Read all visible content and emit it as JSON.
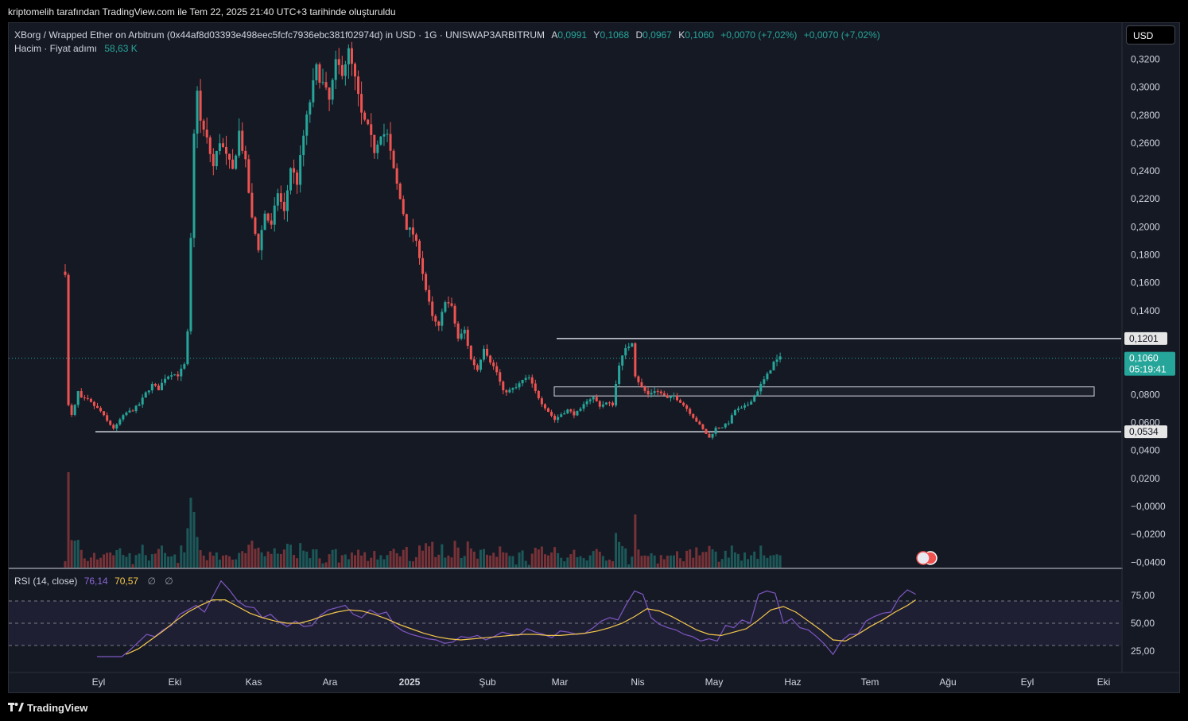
{
  "caption": "kriptomelih tarafından TradingView.com ile Tem 22, 2025 21:40 UTC+3 tarihinde oluşturuldu",
  "legend": {
    "symbol": "XBorg / Wrapped Ether on Arbitrum (0x44af8d03393e498eec5fcfc7936ebc381f02974d) in USD · 1G · UNISWAP3ARBITRUM",
    "open_label": "A",
    "open": "0,0991",
    "high_label": "Y",
    "high": "0,1068",
    "low_label": "D",
    "low": "0,0967",
    "close_label": "K",
    "close": "0,1060",
    "change": "+0,0070 (+7,02%)",
    "change2": "+0,0070 (+7,02%)",
    "volume_label": "Hacim · Fiyat adımı",
    "volume_value": "58,63 K"
  },
  "currency_button": "USD",
  "rsi": {
    "label": "RSI (14, close)",
    "value": "76,14",
    "ma_value": "70,57",
    "flag1": "∅",
    "flag2": "∅",
    "ticks": [
      "75,00",
      "50,00",
      "25,00"
    ]
  },
  "footer": {
    "brand": "TradingView"
  },
  "colors": {
    "up": "#26a69a",
    "down": "#ef5350",
    "rsi": "#7e57c2",
    "rsi_ma": "#f5c84b",
    "background": "#151924"
  },
  "chart_data": {
    "type": "candlestick",
    "y_ticks": [
      "0,3200",
      "0,3000",
      "0,2800",
      "0,2600",
      "0,2400",
      "0,2200",
      "0,2000",
      "0,1800",
      "0,1600",
      "0,1400",
      "0,0800",
      "0,0600",
      "0,0400",
      "0,0200",
      "−0,0000",
      "−0,0200",
      "−0,0400"
    ],
    "price_labels": {
      "resistance": "0,1201",
      "current": "0,1060",
      "countdown": "05:19:41",
      "support": "0,0534"
    },
    "x_labels": [
      "Eyl",
      "Eki",
      "Kas",
      "Ara",
      "2025",
      "Şub",
      "Mar",
      "Nis",
      "May",
      "Haz",
      "Tem",
      "Ağu",
      "Eyl",
      "Eki"
    ],
    "ylim": [
      -0.04,
      0.33
    ],
    "horizontal_lines": [
      0.1201,
      0.0534
    ],
    "zone": [
      0.079,
      0.0855
    ],
    "price_path": [
      [
        0,
        0.168
      ],
      [
        0.5,
        0.13
      ],
      [
        1,
        0.072
      ],
      [
        2,
        0.065
      ],
      [
        3,
        0.072
      ],
      [
        4,
        0.082
      ],
      [
        5,
        0.077
      ],
      [
        7,
        0.076
      ],
      [
        9,
        0.072
      ],
      [
        11,
        0.068
      ],
      [
        13,
        0.061
      ],
      [
        15,
        0.056
      ],
      [
        16,
        0.058
      ],
      [
        17,
        0.062
      ],
      [
        19,
        0.067
      ],
      [
        21,
        0.069
      ],
      [
        23,
        0.073
      ],
      [
        25,
        0.081
      ],
      [
        27,
        0.087
      ],
      [
        29,
        0.084
      ],
      [
        31,
        0.092
      ],
      [
        33,
        0.095
      ],
      [
        35,
        0.094
      ],
      [
        37,
        0.101
      ],
      [
        38,
        0.124
      ],
      [
        39,
        0.19
      ],
      [
        40,
        0.265
      ],
      [
        41,
        0.3
      ],
      [
        42,
        0.275
      ],
      [
        44,
        0.262
      ],
      [
        46,
        0.243
      ],
      [
        48,
        0.262
      ],
      [
        50,
        0.25
      ],
      [
        52,
        0.24
      ],
      [
        54,
        0.268
      ],
      [
        56,
        0.245
      ],
      [
        58,
        0.205
      ],
      [
        60,
        0.185
      ],
      [
        62,
        0.21
      ],
      [
        64,
        0.2
      ],
      [
        66,
        0.225
      ],
      [
        68,
        0.21
      ],
      [
        70,
        0.243
      ],
      [
        72,
        0.232
      ],
      [
        74,
        0.265
      ],
      [
        76,
        0.29
      ],
      [
        78,
        0.313
      ],
      [
        80,
        0.302
      ],
      [
        82,
        0.29
      ],
      [
        84,
        0.316
      ],
      [
        86,
        0.312
      ],
      [
        88,
        0.325
      ],
      [
        90,
        0.305
      ],
      [
        92,
        0.28
      ],
      [
        94,
        0.27
      ],
      [
        96,
        0.255
      ],
      [
        98,
        0.268
      ],
      [
        100,
        0.265
      ],
      [
        102,
        0.24
      ],
      [
        104,
        0.22
      ],
      [
        106,
        0.2
      ],
      [
        108,
        0.195
      ],
      [
        110,
        0.18
      ],
      [
        112,
        0.155
      ],
      [
        114,
        0.135
      ],
      [
        116,
        0.128
      ],
      [
        118,
        0.148
      ],
      [
        120,
        0.142
      ],
      [
        122,
        0.12
      ],
      [
        124,
        0.126
      ],
      [
        126,
        0.105
      ],
      [
        128,
        0.098
      ],
      [
        130,
        0.114
      ],
      [
        132,
        0.104
      ],
      [
        134,
        0.096
      ],
      [
        136,
        0.082
      ],
      [
        138,
        0.083
      ],
      [
        140,
        0.085
      ],
      [
        142,
        0.09
      ],
      [
        144,
        0.092
      ],
      [
        146,
        0.082
      ],
      [
        148,
        0.074
      ],
      [
        150,
        0.068
      ],
      [
        152,
        0.062
      ],
      [
        154,
        0.066
      ],
      [
        156,
        0.069
      ],
      [
        158,
        0.066
      ],
      [
        160,
        0.069
      ],
      [
        162,
        0.076
      ],
      [
        164,
        0.078
      ],
      [
        166,
        0.072
      ],
      [
        168,
        0.074
      ],
      [
        170,
        0.073
      ],
      [
        172,
        0.102
      ],
      [
        174,
        0.112
      ],
      [
        176,
        0.118
      ],
      [
        177,
        0.094
      ],
      [
        179,
        0.085
      ],
      [
        181,
        0.08
      ],
      [
        183,
        0.083
      ],
      [
        185,
        0.081
      ],
      [
        187,
        0.077
      ],
      [
        189,
        0.079
      ],
      [
        191,
        0.075
      ],
      [
        193,
        0.07
      ],
      [
        195,
        0.064
      ],
      [
        197,
        0.058
      ],
      [
        199,
        0.052
      ],
      [
        200,
        0.049
      ],
      [
        202,
        0.056
      ],
      [
        204,
        0.057
      ],
      [
        206,
        0.06
      ],
      [
        208,
        0.069
      ],
      [
        210,
        0.07
      ],
      [
        212,
        0.073
      ],
      [
        214,
        0.079
      ],
      [
        216,
        0.087
      ],
      [
        218,
        0.094
      ],
      [
        220,
        0.103
      ],
      [
        222,
        0.106
      ]
    ],
    "rsi_path": [
      [
        0,
        20
      ],
      [
        6,
        20
      ],
      [
        8,
        26
      ],
      [
        10,
        33
      ],
      [
        12,
        40
      ],
      [
        14,
        38
      ],
      [
        16,
        44
      ],
      [
        18,
        48
      ],
      [
        20,
        58
      ],
      [
        22,
        62
      ],
      [
        24,
        66
      ],
      [
        26,
        60
      ],
      [
        28,
        74
      ],
      [
        30,
        88
      ],
      [
        32,
        80
      ],
      [
        34,
        70
      ],
      [
        36,
        65
      ],
      [
        38,
        64
      ],
      [
        40,
        55
      ],
      [
        42,
        58
      ],
      [
        44,
        51
      ],
      [
        46,
        47
      ],
      [
        48,
        52
      ],
      [
        50,
        47
      ],
      [
        52,
        48
      ],
      [
        54,
        57
      ],
      [
        56,
        62
      ],
      [
        58,
        64
      ],
      [
        60,
        66
      ],
      [
        62,
        58
      ],
      [
        64,
        55
      ],
      [
        66,
        62
      ],
      [
        68,
        58
      ],
      [
        70,
        60
      ],
      [
        72,
        48
      ],
      [
        74,
        43
      ],
      [
        76,
        40
      ],
      [
        78,
        38
      ],
      [
        80,
        36
      ],
      [
        82,
        35
      ],
      [
        84,
        32
      ],
      [
        86,
        33
      ],
      [
        88,
        38
      ],
      [
        90,
        37
      ],
      [
        92,
        39
      ],
      [
        94,
        35
      ],
      [
        96,
        38
      ],
      [
        98,
        42
      ],
      [
        100,
        40
      ],
      [
        102,
        39
      ],
      [
        104,
        45
      ],
      [
        106,
        42
      ],
      [
        108,
        40
      ],
      [
        110,
        37
      ],
      [
        112,
        43
      ],
      [
        114,
        42
      ],
      [
        116,
        40
      ],
      [
        118,
        41
      ],
      [
        120,
        46
      ],
      [
        122,
        52
      ],
      [
        124,
        55
      ],
      [
        126,
        53
      ],
      [
        128,
        67
      ],
      [
        130,
        79
      ],
      [
        132,
        76
      ],
      [
        134,
        55
      ],
      [
        136,
        49
      ],
      [
        138,
        46
      ],
      [
        140,
        44
      ],
      [
        142,
        40
      ],
      [
        144,
        38
      ],
      [
        146,
        34
      ],
      [
        148,
        36
      ],
      [
        150,
        34
      ],
      [
        152,
        48
      ],
      [
        154,
        46
      ],
      [
        156,
        53
      ],
      [
        158,
        50
      ],
      [
        160,
        76
      ],
      [
        162,
        79
      ],
      [
        164,
        77
      ],
      [
        166,
        50
      ],
      [
        168,
        54
      ],
      [
        170,
        46
      ],
      [
        172,
        44
      ],
      [
        174,
        38
      ],
      [
        176,
        31
      ],
      [
        178,
        22
      ],
      [
        180,
        34
      ],
      [
        182,
        40
      ],
      [
        184,
        40
      ],
      [
        186,
        52
      ],
      [
        188,
        56
      ],
      [
        190,
        59
      ],
      [
        192,
        60
      ],
      [
        194,
        73
      ],
      [
        196,
        80
      ],
      [
        198,
        76
      ]
    ],
    "rsi_ma_path": [
      [
        7,
        22
      ],
      [
        10,
        27
      ],
      [
        13,
        35
      ],
      [
        16,
        43
      ],
      [
        19,
        52
      ],
      [
        22,
        60
      ],
      [
        25,
        66
      ],
      [
        28,
        71
      ],
      [
        31,
        71
      ],
      [
        34,
        65
      ],
      [
        37,
        59
      ],
      [
        40,
        55
      ],
      [
        43,
        52
      ],
      [
        46,
        50
      ],
      [
        49,
        50
      ],
      [
        52,
        53
      ],
      [
        55,
        57
      ],
      [
        58,
        60
      ],
      [
        61,
        62
      ],
      [
        64,
        61
      ],
      [
        67,
        58
      ],
      [
        70,
        54
      ],
      [
        73,
        49
      ],
      [
        76,
        45
      ],
      [
        79,
        41
      ],
      [
        82,
        38
      ],
      [
        85,
        36
      ],
      [
        88,
        35
      ],
      [
        91,
        36
      ],
      [
        94,
        37
      ],
      [
        97,
        38
      ],
      [
        100,
        39
      ],
      [
        103,
        40
      ],
      [
        106,
        40
      ],
      [
        109,
        39
      ],
      [
        112,
        39
      ],
      [
        115,
        40
      ],
      [
        118,
        41
      ],
      [
        121,
        43
      ],
      [
        124,
        46
      ],
      [
        127,
        50
      ],
      [
        130,
        56
      ],
      [
        133,
        63
      ],
      [
        136,
        61
      ],
      [
        139,
        56
      ],
      [
        142,
        50
      ],
      [
        145,
        44
      ],
      [
        148,
        40
      ],
      [
        151,
        39
      ],
      [
        154,
        42
      ],
      [
        157,
        45
      ],
      [
        160,
        53
      ],
      [
        163,
        62
      ],
      [
        166,
        65
      ],
      [
        169,
        60
      ],
      [
        172,
        52
      ],
      [
        175,
        44
      ],
      [
        178,
        35
      ],
      [
        181,
        34
      ],
      [
        184,
        40
      ],
      [
        187,
        47
      ],
      [
        190,
        53
      ],
      [
        193,
        60
      ],
      [
        196,
        66
      ],
      [
        198,
        71
      ]
    ],
    "rsi_levels": [
      70,
      50,
      30
    ]
  }
}
